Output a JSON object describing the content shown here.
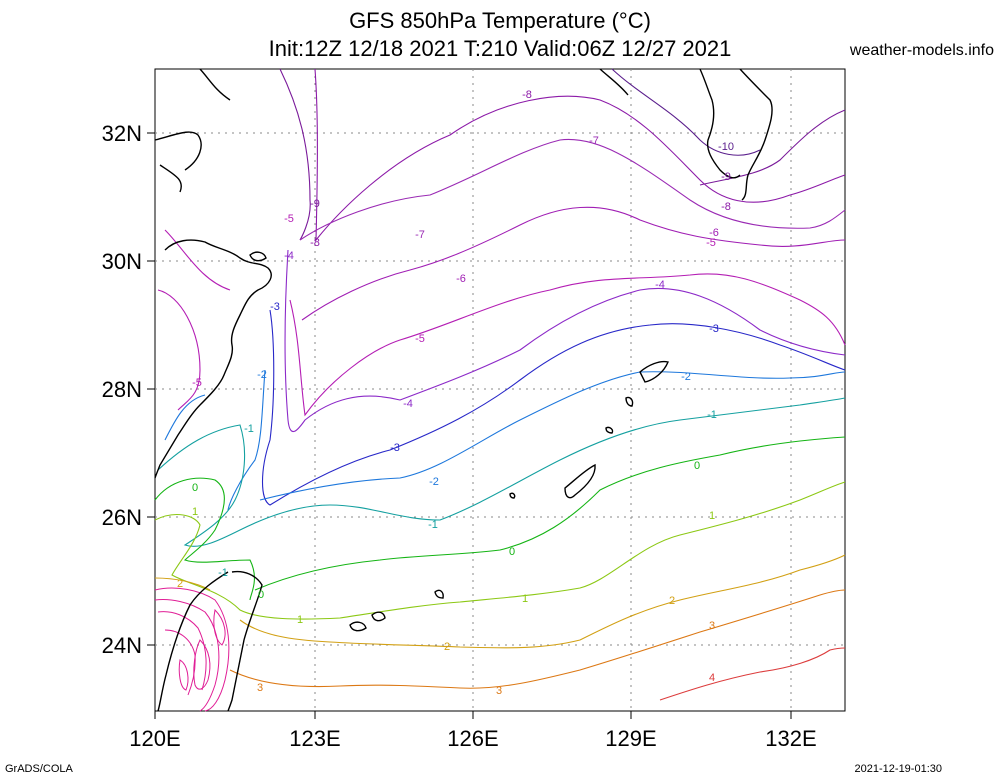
{
  "title_line1": "GFS 850hPa Temperature (°C)",
  "title_line2": "Init:12Z 12/18 2021 T:210 Valid:06Z 12/27 2021",
  "site": "weather-models.info",
  "footer_left": "GrADS/COLA",
  "footer_right": "2021-12-19-01:30",
  "lat_labels": [
    "32N",
    "30N",
    "28N",
    "26N",
    "24N"
  ],
  "lon_labels": [
    "120E",
    "123E",
    "126E",
    "129E",
    "132E"
  ],
  "contour_labels": [
    "-10",
    "-9",
    "-8",
    "-7",
    "-6",
    "-5",
    "-4",
    "-3",
    "-2",
    "-1",
    "0",
    "1",
    "2",
    "3",
    "4"
  ],
  "colors": {
    "m10": "#5a1e8c",
    "m9": "#7a1a9a",
    "m8": "#8c1aa8",
    "m7": "#9a2ab4",
    "m6": "#a01eb4",
    "m5": "#b41eb4",
    "m4": "#8c2ac8",
    "m3": "#2828c8",
    "m2": "#1e78dc",
    "m1": "#14a0a0",
    "z0": "#14b414",
    "p1": "#8cc814",
    "p2": "#d2a014",
    "p3": "#dc7814",
    "p4": "#dc3c3c",
    "warm": "#e01e96"
  }
}
